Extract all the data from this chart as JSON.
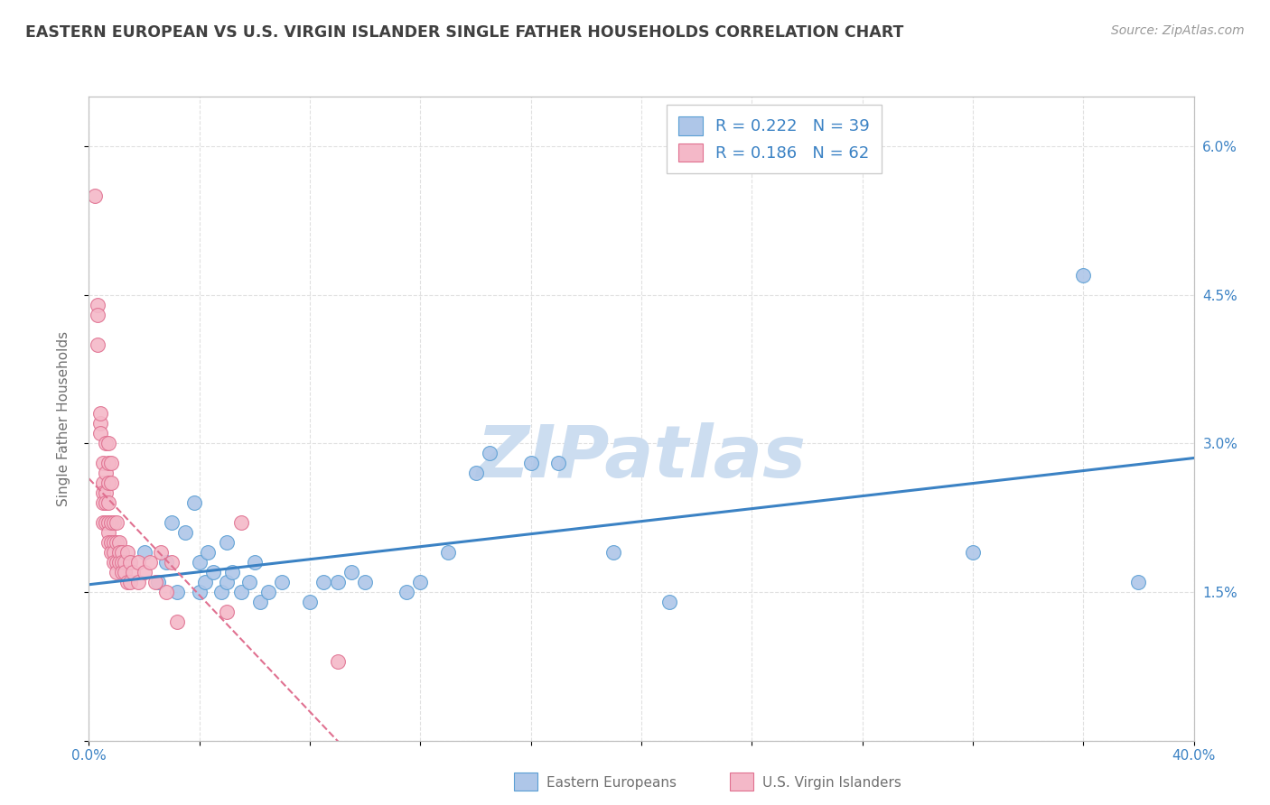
{
  "title": "EASTERN EUROPEAN VS U.S. VIRGIN ISLANDER SINGLE FATHER HOUSEHOLDS CORRELATION CHART",
  "source": "Source: ZipAtlas.com",
  "ylabel": "Single Father Households",
  "right_yticks": [
    0.0,
    0.015,
    0.03,
    0.045,
    0.06
  ],
  "right_yticklabels": [
    "",
    "1.5%",
    "3.0%",
    "4.5%",
    "6.0%"
  ],
  "xlim": [
    0.0,
    0.4
  ],
  "ylim": [
    0.0,
    0.065
  ],
  "legend_r1": "R = 0.222",
  "legend_n1": "N = 39",
  "legend_r2": "R = 0.186",
  "legend_n2": "N = 62",
  "legend_label1": "Eastern Europeans",
  "legend_label2": "U.S. Virgin Islanders",
  "blue_color": "#aec6e8",
  "pink_color": "#f4b8c8",
  "blue_edge_color": "#5a9fd4",
  "pink_edge_color": "#e07090",
  "blue_line_color": "#3b82c4",
  "pink_line_color": "#e07090",
  "blue_scatter": [
    [
      0.02,
      0.019
    ],
    [
      0.025,
      0.016
    ],
    [
      0.028,
      0.018
    ],
    [
      0.03,
      0.022
    ],
    [
      0.032,
      0.015
    ],
    [
      0.035,
      0.021
    ],
    [
      0.038,
      0.024
    ],
    [
      0.04,
      0.015
    ],
    [
      0.04,
      0.018
    ],
    [
      0.042,
      0.016
    ],
    [
      0.043,
      0.019
    ],
    [
      0.045,
      0.017
    ],
    [
      0.048,
      0.015
    ],
    [
      0.05,
      0.02
    ],
    [
      0.05,
      0.016
    ],
    [
      0.052,
      0.017
    ],
    [
      0.055,
      0.015
    ],
    [
      0.058,
      0.016
    ],
    [
      0.06,
      0.018
    ],
    [
      0.062,
      0.014
    ],
    [
      0.065,
      0.015
    ],
    [
      0.07,
      0.016
    ],
    [
      0.08,
      0.014
    ],
    [
      0.085,
      0.016
    ],
    [
      0.09,
      0.016
    ],
    [
      0.095,
      0.017
    ],
    [
      0.1,
      0.016
    ],
    [
      0.115,
      0.015
    ],
    [
      0.12,
      0.016
    ],
    [
      0.13,
      0.019
    ],
    [
      0.14,
      0.027
    ],
    [
      0.145,
      0.029
    ],
    [
      0.16,
      0.028
    ],
    [
      0.17,
      0.028
    ],
    [
      0.19,
      0.019
    ],
    [
      0.21,
      0.014
    ],
    [
      0.32,
      0.019
    ],
    [
      0.36,
      0.047
    ],
    [
      0.38,
      0.016
    ]
  ],
  "pink_scatter": [
    [
      0.002,
      0.055
    ],
    [
      0.003,
      0.044
    ],
    [
      0.003,
      0.043
    ],
    [
      0.003,
      0.04
    ],
    [
      0.004,
      0.032
    ],
    [
      0.004,
      0.033
    ],
    [
      0.004,
      0.031
    ],
    [
      0.005,
      0.028
    ],
    [
      0.005,
      0.026
    ],
    [
      0.005,
      0.025
    ],
    [
      0.005,
      0.024
    ],
    [
      0.005,
      0.022
    ],
    [
      0.006,
      0.03
    ],
    [
      0.006,
      0.027
    ],
    [
      0.006,
      0.025
    ],
    [
      0.006,
      0.024
    ],
    [
      0.006,
      0.022
    ],
    [
      0.007,
      0.03
    ],
    [
      0.007,
      0.028
    ],
    [
      0.007,
      0.026
    ],
    [
      0.007,
      0.024
    ],
    [
      0.007,
      0.022
    ],
    [
      0.007,
      0.021
    ],
    [
      0.007,
      0.02
    ],
    [
      0.008,
      0.028
    ],
    [
      0.008,
      0.026
    ],
    [
      0.008,
      0.022
    ],
    [
      0.008,
      0.02
    ],
    [
      0.008,
      0.019
    ],
    [
      0.009,
      0.022
    ],
    [
      0.009,
      0.02
    ],
    [
      0.009,
      0.019
    ],
    [
      0.009,
      0.018
    ],
    [
      0.01,
      0.022
    ],
    [
      0.01,
      0.02
    ],
    [
      0.01,
      0.018
    ],
    [
      0.01,
      0.017
    ],
    [
      0.011,
      0.02
    ],
    [
      0.011,
      0.019
    ],
    [
      0.011,
      0.018
    ],
    [
      0.012,
      0.019
    ],
    [
      0.012,
      0.018
    ],
    [
      0.012,
      0.017
    ],
    [
      0.013,
      0.018
    ],
    [
      0.013,
      0.017
    ],
    [
      0.014,
      0.019
    ],
    [
      0.014,
      0.016
    ],
    [
      0.015,
      0.018
    ],
    [
      0.015,
      0.016
    ],
    [
      0.016,
      0.017
    ],
    [
      0.018,
      0.018
    ],
    [
      0.018,
      0.016
    ],
    [
      0.02,
      0.017
    ],
    [
      0.022,
      0.018
    ],
    [
      0.024,
      0.016
    ],
    [
      0.026,
      0.019
    ],
    [
      0.028,
      0.015
    ],
    [
      0.03,
      0.018
    ],
    [
      0.032,
      0.012
    ],
    [
      0.05,
      0.013
    ],
    [
      0.055,
      0.022
    ],
    [
      0.09,
      0.008
    ]
  ],
  "watermark_text": "ZIPatlas",
  "watermark_color": "#ccddf0",
  "background_color": "#ffffff",
  "grid_color": "#e0e0e0",
  "title_color": "#404040",
  "axis_color": "#707070"
}
